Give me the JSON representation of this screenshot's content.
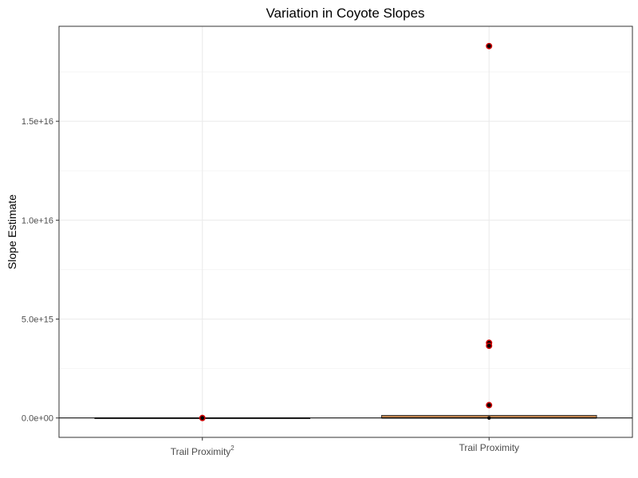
{
  "chart_data": {
    "type": "box",
    "title": "Variation in Coyote Slopes",
    "xlabel": "",
    "ylabel": "Slope Estimate",
    "ylim": [
      -980000000000000.0,
      1.98e+16
    ],
    "yticks": [
      0,
      5000000000000000.0,
      1e+16,
      1.5e+16
    ],
    "ytick_labels": [
      "0.0e+00",
      "5.0e+15",
      "1.0e+16",
      "1.5e+16"
    ],
    "grid": true,
    "reference_line_y": 0,
    "categories": [
      {
        "label": "Trail Proximity",
        "superscript": "2"
      },
      {
        "label": "Trail Proximity",
        "superscript": ""
      }
    ],
    "boxes": [
      {
        "q1": 0,
        "median": 0,
        "q3": 0,
        "whisker_low": 0,
        "whisker_high": 0,
        "fill": "#ffffff"
      },
      {
        "q1": 0,
        "median": 0,
        "q3": 130000000000000.0,
        "whisker_low": 0,
        "whisker_high": 130000000000000.0,
        "fill": "#c98a50"
      }
    ],
    "outliers": [
      [
        0
      ],
      [
        1.88e+16,
        3800000000000000.0,
        3650000000000000.0,
        650000000000000.0
      ]
    ],
    "points": [
      [
        0
      ],
      [
        0
      ]
    ],
    "colors": {
      "outlier_ring": "#cc0000",
      "point": "#000000",
      "grid": "#ebebeb",
      "panel_border": "#333333"
    }
  }
}
